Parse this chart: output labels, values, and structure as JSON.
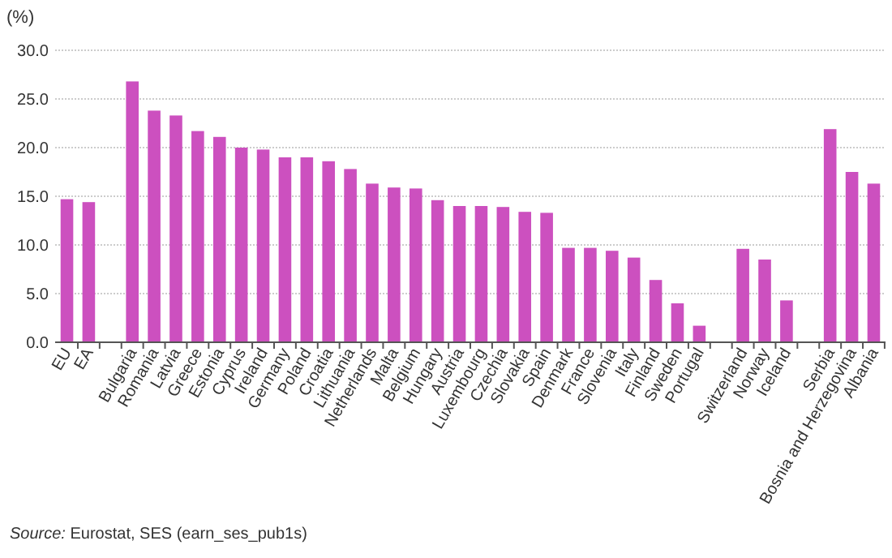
{
  "chart_data": {
    "type": "bar",
    "ylabel": "(%)",
    "categories": [
      "EU",
      "EA",
      null,
      "Bulgaria",
      "Romania",
      "Latvia",
      "Greece",
      "Estonia",
      "Cyprus",
      "Ireland",
      "Germany",
      "Poland",
      "Croatia",
      "Lithuania",
      "Netherlands",
      "Malta",
      "Belgium",
      "Hungary",
      "Austria",
      "Luxembourg",
      "Czechia",
      "Slovakia",
      "Spain",
      "Denmark",
      "France",
      "Slovenia",
      "Italy",
      "Finland",
      "Sweden",
      "Portugal",
      null,
      "Switzerland",
      "Norway",
      "Iceland",
      null,
      "Serbia",
      "Bosnia and Herzegovina",
      "Albania"
    ],
    "values": [
      14.7,
      14.4,
      null,
      26.8,
      23.8,
      23.3,
      21.7,
      21.1,
      20.0,
      19.8,
      19.0,
      19.0,
      18.6,
      17.8,
      16.3,
      15.9,
      15.8,
      14.6,
      14.0,
      14.0,
      13.9,
      13.4,
      13.3,
      9.7,
      9.7,
      9.4,
      8.7,
      6.4,
      4.0,
      1.7,
      null,
      9.6,
      8.5,
      4.3,
      null,
      21.9,
      17.5,
      16.3
    ],
    "color": "#cc50bf",
    "ylim": [
      0,
      30
    ],
    "yticks": [
      {
        "value": 0,
        "label": "0.0"
      },
      {
        "value": 5,
        "label": "5.0"
      },
      {
        "value": 10,
        "label": "10.0"
      },
      {
        "value": 15,
        "label": "15.0"
      },
      {
        "value": 20,
        "label": "20.0"
      },
      {
        "value": 25,
        "label": "25.0"
      },
      {
        "value": 30,
        "label": "30.0"
      }
    ],
    "grid": "y",
    "annotations": [
      "Source: Eurostat, SES (earn_ses_pub1s)"
    ]
  }
}
